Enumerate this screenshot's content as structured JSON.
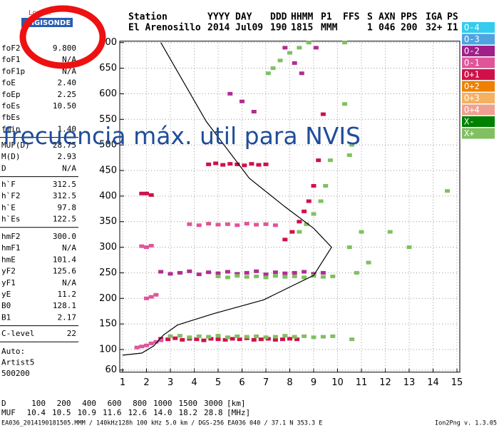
{
  "logo": {
    "top": "Lowell",
    "bottom": "DIGISONDE"
  },
  "header": [
    {
      "name": "Station",
      "value": "El Arenosillo"
    },
    {
      "name": "YYYY",
      "value": "2014"
    },
    {
      "name": "DAY",
      "value": "Jul09"
    },
    {
      "name": "DDD",
      "value": "190"
    },
    {
      "name": "HHMM",
      "value": "1815"
    },
    {
      "name": "P1",
      "value": "MMM"
    },
    {
      "name": "FFS"
    },
    {
      "name": "S",
      "value": "1"
    },
    {
      "name": "AXN",
      "value": "046"
    },
    {
      "name": "PPS",
      "value": "200"
    },
    {
      "name": "IGA",
      "value": "32+"
    },
    {
      "name": "PS",
      "value": "I1"
    }
  ],
  "parameters": [
    [
      {
        "name": "foF2",
        "value": "9.800"
      },
      {
        "name": "foF1",
        "value": "N/A"
      },
      {
        "name": "foF1p",
        "value": "N/A"
      },
      {
        "name": "foE",
        "value": "2.40"
      },
      {
        "name": "foEp",
        "value": "2.25"
      },
      {
        "name": "foEs",
        "value": "10.50"
      },
      {
        "name": "fbEs"
      },
      {
        "name": "fmin",
        "value": "1.40"
      }
    ],
    [
      {
        "name": "MUF(D)",
        "value": "28.75"
      },
      {
        "name": "M(D)",
        "value": "2.93"
      },
      {
        "name": "D",
        "value": "N/A"
      }
    ],
    [
      {
        "name": "h`F",
        "value": "312.5"
      },
      {
        "name": "h`F2",
        "value": "312.5"
      },
      {
        "name": "h`E",
        "value": "97.8"
      },
      {
        "name": "h`Es",
        "value": "122.5"
      }
    ],
    [
      {
        "name": "hmF2",
        "value": "300.0"
      },
      {
        "name": "hmF1",
        "value": "N/A"
      },
      {
        "name": "hmE",
        "value": "101.4"
      },
      {
        "name": "yF2",
        "value": "125.6"
      },
      {
        "name": "yF1",
        "value": "N/A"
      },
      {
        "name": "yE",
        "value": "11.2"
      },
      {
        "name": "B0",
        "value": "128.1"
      },
      {
        "name": "B1",
        "value": "2.17"
      }
    ],
    [
      {
        "name": "C-level",
        "value": "22"
      }
    ]
  ],
  "auto": [
    "Auto:",
    "Artist5",
    "500200"
  ],
  "footer": {
    "d": {
      "label": "D",
      "values": [
        "100",
        "200",
        "400",
        "600",
        "800",
        "1000",
        "1500",
        "3000"
      ],
      "unit": "[km]"
    },
    "muf": {
      "label": "MUF",
      "values": [
        "10.4",
        "10.5",
        "10.9",
        "11.6",
        "12.6",
        "14.0",
        "18.2",
        "28.8"
      ],
      "unit": "[MHz]"
    },
    "file": "EA036_2014190181505.MMM / 140kHz128h 100 kHz 5.0 km / DGS-256 EA036 040 / 37.1 N 353.3 E",
    "version": "Ion2Png v. 1.3.05"
  },
  "annotation": "frecuencia máx. util para NVIS",
  "chart_data": {
    "type": "scatter",
    "xlim": [
      1,
      15
    ],
    "ylim": [
      60,
      700
    ],
    "xticks": [
      1,
      2,
      3,
      4,
      5,
      6,
      7,
      8,
      9,
      10,
      11,
      12,
      13,
      14,
      15
    ],
    "yticks": [
      60,
      100,
      150,
      200,
      250,
      300,
      350,
      400,
      450,
      500,
      550,
      600,
      650,
      700
    ],
    "grid": true,
    "legend": [
      {
        "name": "O-4",
        "color": "#33ccee"
      },
      {
        "name": "O-3",
        "color": "#4fa3e0"
      },
      {
        "name": "O-2",
        "color": "#a0208a"
      },
      {
        "name": "O-1",
        "color": "#e0559a"
      },
      {
        "name": "O+1",
        "color": "#d0104a"
      },
      {
        "name": "O+2",
        "color": "#f08000"
      },
      {
        "name": "O+3",
        "color": "#f5b060"
      },
      {
        "name": "O+4",
        "color": "#f0a090"
      },
      {
        "name": "X-",
        "color": "#008000"
      },
      {
        "name": "X+",
        "color": "#80c060"
      }
    ],
    "traces": [
      {
        "color": "#d0104a",
        "x": [
          2.6,
          2.9,
          3.2,
          3.5,
          3.8,
          4.1,
          4.4,
          4.7,
          5.0,
          5.3,
          5.6,
          5.9,
          6.2,
          6.5,
          6.8,
          7.1,
          7.4,
          7.7,
          8.0,
          8.3
        ],
        "y": [
          121,
          120,
          122,
          119,
          121,
          120,
          118,
          121,
          120,
          119,
          121,
          120,
          122,
          119,
          120,
          121,
          119,
          120,
          121,
          120
        ]
      },
      {
        "color": "#80c060",
        "x": [
          3.0,
          3.4,
          3.8,
          4.2,
          4.6,
          5.0,
          5.4,
          5.8,
          6.2,
          6.6,
          7.0,
          7.4,
          7.8,
          8.2,
          8.6,
          9.0,
          9.4,
          9.8
        ],
        "y": [
          126,
          127,
          124,
          126,
          125,
          127,
          124,
          126,
          125,
          126,
          124,
          125,
          127,
          125,
          126,
          124,
          125,
          126
        ]
      },
      {
        "color": "#e0559a",
        "x": [
          1.6,
          1.8,
          2.0,
          2.2,
          2.4,
          2.6
        ],
        "y": [
          104,
          106,
          108,
          112,
          115,
          118
        ]
      },
      {
        "color": "#b02d90",
        "x": [
          2.6,
          3.0,
          3.4,
          3.8,
          4.2,
          4.6,
          5.0,
          5.4,
          5.8,
          6.2,
          6.6,
          7.0,
          7.4,
          7.8,
          8.2,
          8.6,
          9.0,
          9.4
        ],
        "y": [
          252,
          248,
          250,
          253,
          247,
          251,
          249,
          252,
          248,
          250,
          253,
          247,
          251,
          249,
          250,
          252,
          248,
          250
        ]
      },
      {
        "color": "#80c060",
        "x": [
          5.0,
          5.4,
          5.8,
          6.2,
          6.6,
          7.0,
          7.4,
          7.8,
          8.2,
          8.6,
          9.0,
          9.4,
          9.8
        ],
        "y": [
          243,
          241,
          244,
          242,
          243,
          241,
          244,
          242,
          243,
          241,
          244,
          242,
          243
        ]
      },
      {
        "color": "#d0104a",
        "x": [
          4.6,
          4.9,
          5.2,
          5.5,
          5.8,
          6.1,
          6.4,
          6.7,
          7.0
        ],
        "y": [
          462,
          464,
          461,
          463,
          462,
          460,
          463,
          461,
          462
        ]
      },
      {
        "color": "#e0559a",
        "x": [
          3.8,
          4.2,
          4.6,
          5.0,
          5.4,
          5.8,
          6.2,
          6.6,
          7.0,
          7.4
        ],
        "y": [
          345,
          343,
          346,
          344,
          345,
          343,
          346,
          344,
          345,
          343
        ]
      },
      {
        "color": "#d0104a",
        "x": [
          7.8,
          8.1,
          8.4,
          8.6,
          8.8,
          9.0,
          9.2,
          9.4
        ],
        "y": [
          315,
          330,
          350,
          370,
          390,
          420,
          470,
          560
        ]
      },
      {
        "color": "#80c060",
        "x": [
          8.4,
          8.7,
          9.0,
          9.3,
          9.5,
          9.7
        ],
        "y": [
          330,
          345,
          365,
          390,
          420,
          470
        ]
      },
      {
        "color": "#e0559a",
        "x": [
          2.0,
          2.2,
          2.4
        ],
        "y": [
          200,
          203,
          207
        ]
      },
      {
        "color": "#e0559a",
        "x": [
          1.8,
          2.0,
          2.2
        ],
        "y": [
          302,
          300,
          303
        ]
      },
      {
        "color": "#d0104a",
        "x": [
          1.8,
          2.0,
          2.2
        ],
        "y": [
          405,
          405,
          402
        ]
      },
      {
        "color": "#80c060",
        "x": [
          10.5,
          10.6,
          10.5,
          10.8,
          11.0,
          10.6,
          11.3,
          10.3,
          10.3,
          12.2,
          13.0,
          14.6
        ],
        "y": [
          480,
          500,
          300,
          250,
          330,
          120,
          270,
          580,
          700,
          330,
          300,
          410
        ]
      },
      {
        "color": "#80c060",
        "x": [
          7.1,
          7.3,
          7.6,
          8.0,
          8.4,
          8.8
        ],
        "y": [
          640,
          650,
          665,
          680,
          690,
          700
        ]
      },
      {
        "color": "#b02d90",
        "x": [
          7.8,
          8.2,
          8.5,
          9.1,
          5.5,
          6.0,
          6.5
        ],
        "y": [
          690,
          660,
          640,
          690,
          600,
          585,
          565
        ]
      }
    ],
    "profile": {
      "x": [
        2.6,
        4.5,
        6.3,
        7.8,
        9.0,
        9.75,
        9.0,
        6.9,
        4.8,
        3.3,
        2.7,
        2.3,
        1.8,
        1.0
      ],
      "y": [
        700,
        546,
        435,
        379,
        337,
        300,
        245,
        197,
        170,
        148,
        128,
        107,
        93,
        89
      ]
    }
  }
}
